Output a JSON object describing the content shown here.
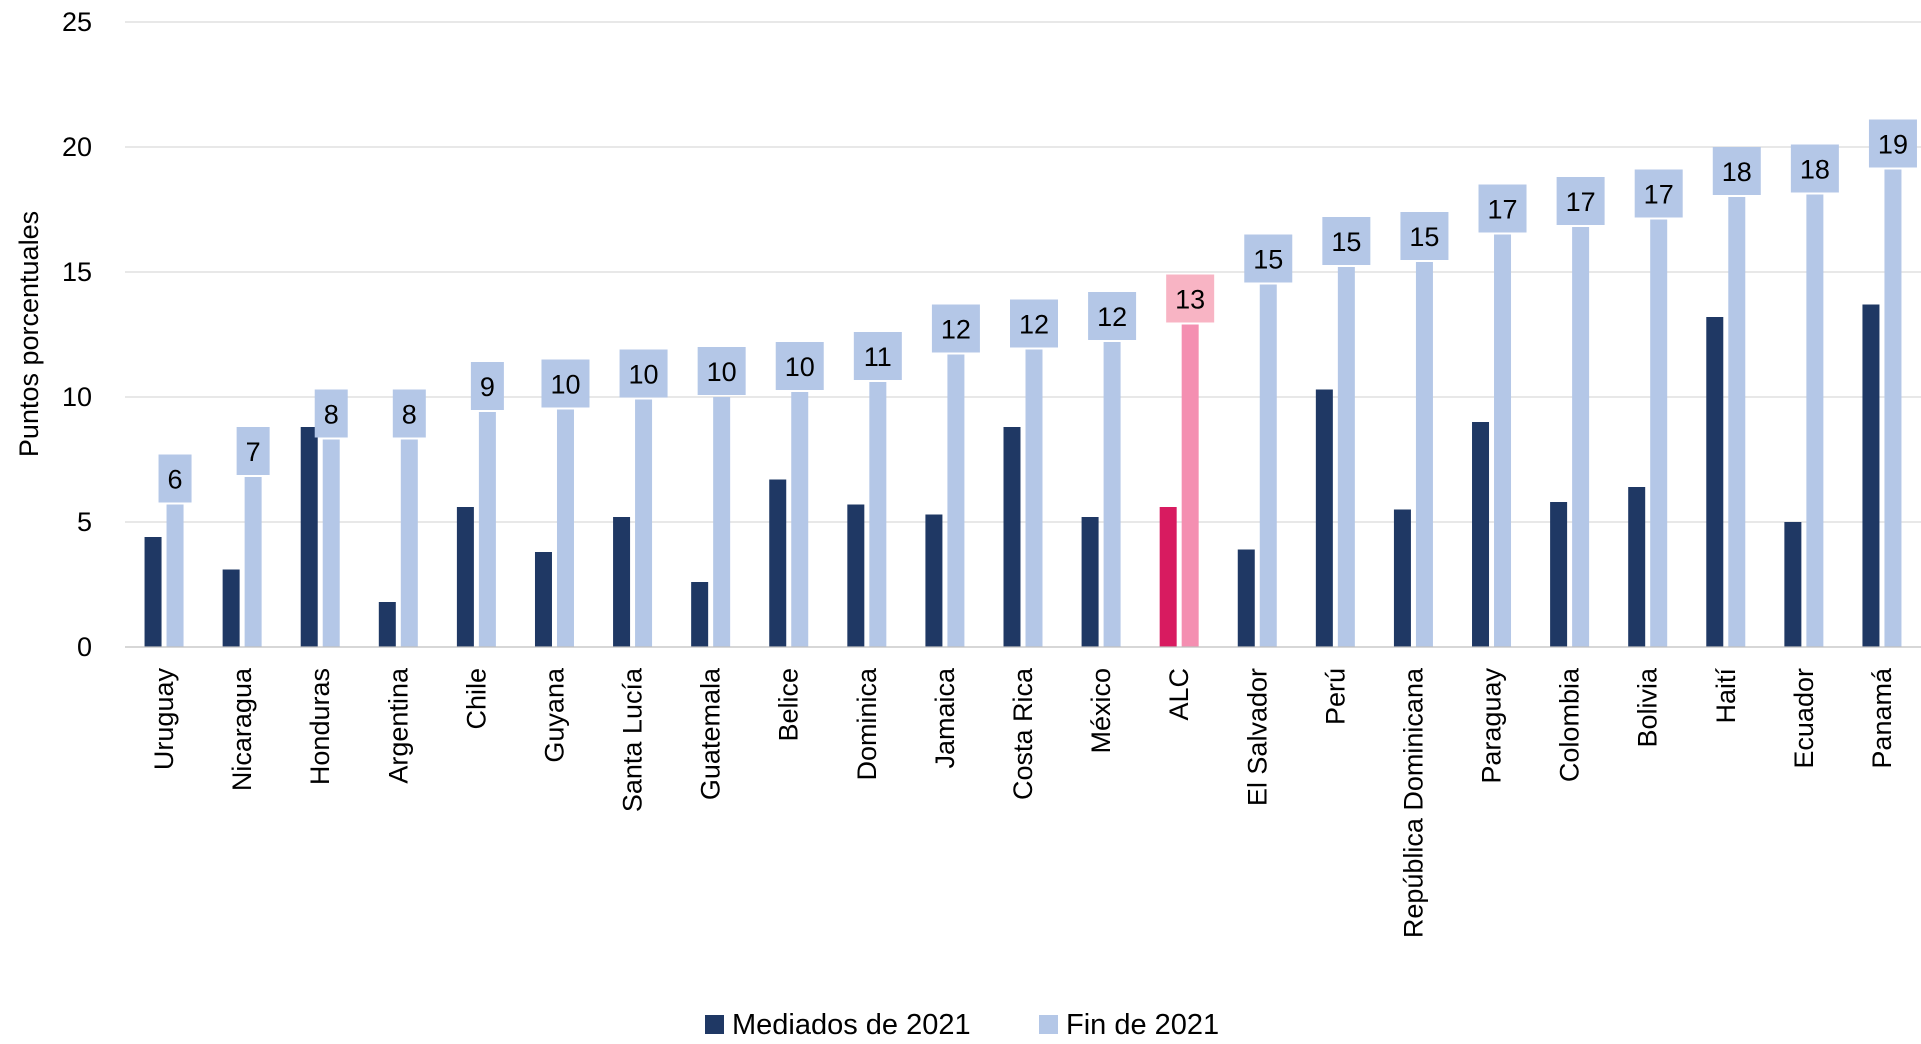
{
  "chart_data": {
    "type": "bar",
    "ylabel": "Puntos porcentuales",
    "xlabel": "",
    "ylim": [
      0,
      25
    ],
    "yticks": [
      0,
      5,
      10,
      15,
      20,
      25
    ],
    "grid": true,
    "legend_position": "bottom-center",
    "categories": [
      "Uruguay",
      "Nicaragua",
      "Honduras",
      "Argentina",
      "Chile",
      "Guyana",
      "Santa Lucía",
      "Guatemala",
      "Belice",
      "Dominica",
      "Jamaica",
      "Costa Rica",
      "México",
      "ALC",
      "El Salvador",
      "Perú",
      "República Dominicana",
      "Paraguay",
      "Colombia",
      "Bolivia",
      "Haití",
      "Ecuador",
      "Panamá"
    ],
    "highlight_category": "ALC",
    "series": [
      {
        "name": "Mediados de 2021",
        "color": "#1f3864",
        "highlight_color": "#d81b60",
        "values": [
          4.4,
          3.1,
          8.8,
          1.8,
          5.6,
          3.8,
          5.2,
          2.6,
          6.7,
          5.7,
          5.3,
          8.8,
          5.2,
          5.6,
          3.9,
          10.3,
          5.5,
          9.0,
          5.8,
          6.4,
          13.2,
          5.0,
          13.7
        ]
      },
      {
        "name": "Fin de 2021",
        "color": "#b4c7e7",
        "highlight_color": "#f48fb1",
        "label_bg": "#b4c7e7",
        "label_highlight_bg": "#f8b4c4",
        "values": [
          5.7,
          6.8,
          8.3,
          8.3,
          9.4,
          9.5,
          9.9,
          10.0,
          10.2,
          10.6,
          11.7,
          11.9,
          12.2,
          12.9,
          14.5,
          15.2,
          15.4,
          16.5,
          16.8,
          17.1,
          18.0,
          18.1,
          19.1
        ],
        "data_labels": [
          "6",
          "7",
          "8",
          "8",
          "9",
          "10",
          "10",
          "10",
          "10",
          "11",
          "12",
          "12",
          "12",
          "13",
          "15",
          "15",
          "15",
          "17",
          "17",
          "17",
          "18",
          "18",
          "19"
        ]
      }
    ]
  }
}
